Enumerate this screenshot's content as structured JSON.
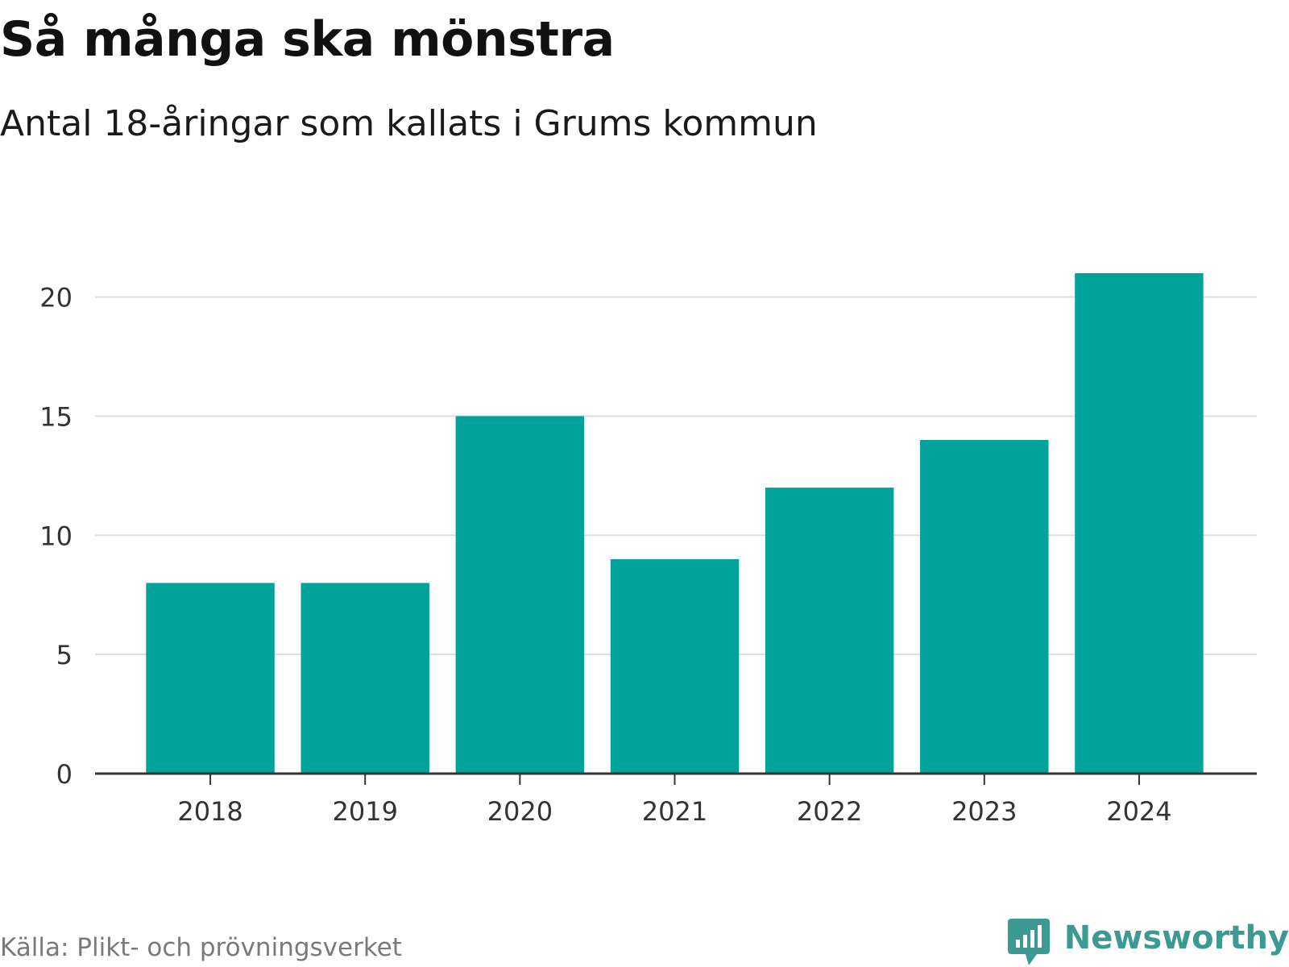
{
  "header": {
    "title": "Så många ska mönstra",
    "subtitle": "Antal 18-åringar som kallats i Grums kommun"
  },
  "footer": {
    "source": "Källa: Plikt- och prövningsverket",
    "brand": "Newsworthy"
  },
  "colors": {
    "bar": "#00a39a",
    "grid": "#dddddd",
    "axis": "#333333",
    "brand": "#3d9a93"
  },
  "chart_data": {
    "type": "bar",
    "title": "Så många ska mönstra",
    "subtitle": "Antal 18-åringar som kallats i Grums kommun",
    "categories": [
      "2018",
      "2019",
      "2020",
      "2021",
      "2022",
      "2023",
      "2024"
    ],
    "values": [
      8,
      8,
      15,
      9,
      12,
      14,
      21
    ],
    "xlabel": "",
    "ylabel": "",
    "ylim": [
      0,
      21
    ],
    "yticks": [
      0,
      5,
      10,
      15,
      20
    ],
    "grid": true,
    "legend": "none"
  }
}
